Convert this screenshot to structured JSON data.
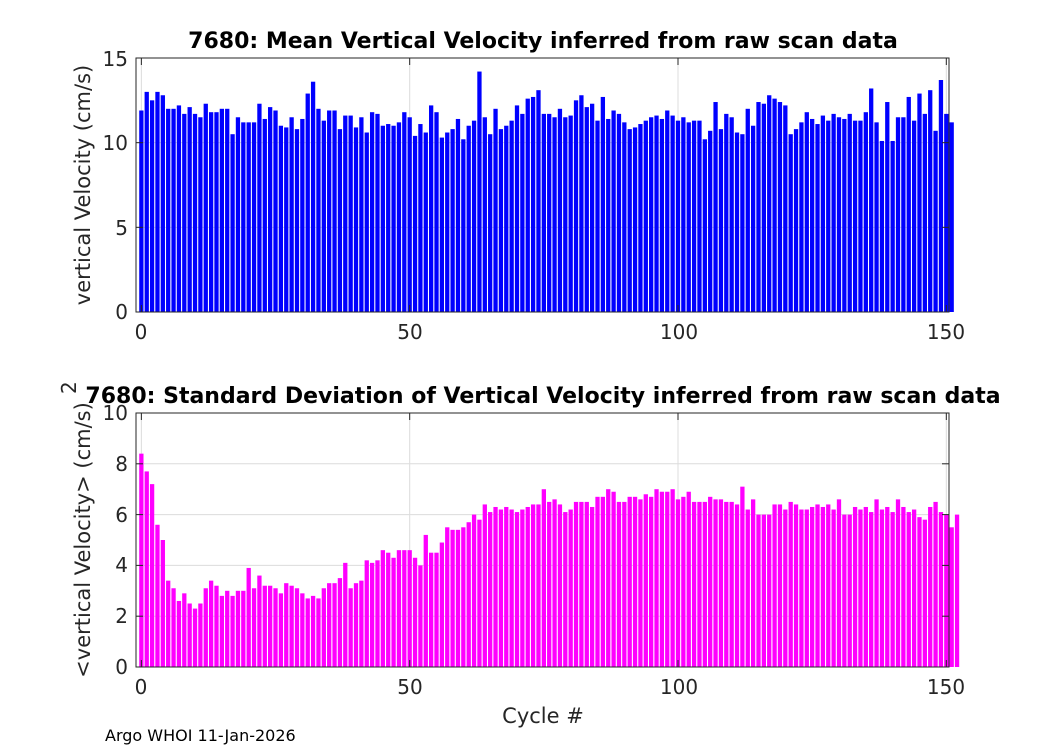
{
  "chart_data": [
    {
      "type": "bar",
      "title": "7680: Mean Vertical Velocity inferred from raw scan data",
      "xlabel": "",
      "ylabel": "vertical Velocity (cm/s)",
      "xlim": [
        -1,
        150.5
      ],
      "ylim": [
        0,
        15
      ],
      "xticks": [
        "0",
        "50",
        "100",
        "150"
      ],
      "yticks": [
        "0",
        "5",
        "10",
        "15"
      ],
      "grid": true,
      "color": "#0000ff",
      "x_start": 0,
      "values": [
        11.9,
        13.0,
        12.5,
        13.0,
        12.8,
        12.0,
        12.0,
        12.2,
        11.7,
        12.1,
        11.7,
        11.5,
        12.3,
        11.8,
        11.8,
        12.0,
        12.0,
        10.5,
        11.5,
        11.2,
        11.2,
        11.2,
        12.3,
        11.4,
        12.1,
        11.9,
        11.0,
        10.9,
        11.5,
        10.8,
        11.4,
        12.9,
        13.6,
        12.0,
        11.3,
        11.9,
        11.9,
        10.8,
        11.6,
        11.6,
        10.9,
        11.5,
        10.6,
        11.8,
        11.7,
        11.0,
        11.1,
        11.0,
        11.2,
        11.8,
        11.5,
        10.4,
        11.1,
        10.6,
        12.2,
        11.8,
        10.3,
        10.6,
        10.8,
        11.4,
        10.2,
        11.0,
        11.3,
        14.2,
        11.5,
        10.5,
        12.0,
        10.8,
        11.0,
        11.3,
        12.2,
        11.7,
        12.6,
        12.7,
        13.1,
        11.7,
        11.7,
        11.5,
        12.0,
        11.5,
        11.6,
        12.5,
        12.8,
        12.1,
        12.3,
        11.3,
        12.7,
        11.4,
        11.9,
        11.7,
        11.2,
        10.8,
        10.9,
        11.1,
        11.3,
        11.5,
        11.6,
        11.4,
        11.9,
        11.6,
        11.3,
        11.5,
        11.2,
        11.3,
        11.3,
        10.2,
        10.7,
        12.4,
        10.8,
        11.7,
        11.5,
        10.6,
        10.5,
        12.0,
        11.0,
        12.4,
        12.3,
        12.8,
        12.6,
        12.4,
        12.2,
        10.5,
        10.8,
        11.2,
        11.8,
        11.4,
        11.1,
        11.6,
        11.3,
        11.7,
        11.5,
        11.4,
        11.7,
        11.3,
        11.3,
        11.8,
        13.2,
        11.2,
        10.1,
        12.4,
        10.1,
        11.5,
        11.5,
        12.7,
        11.3,
        12.9,
        11.7,
        13.1,
        10.7,
        13.7,
        11.7,
        11.2
      ]
    },
    {
      "type": "bar",
      "title": "7680: Standard Deviation of Vertical Velocity inferred from raw scan data",
      "xlabel": "Cycle #",
      "ylabel": "<vertical Velocity> (cm/s)",
      "ylabel_superscript": "2",
      "xlim": [
        -1,
        150.5
      ],
      "ylim": [
        0,
        10
      ],
      "xticks": [
        "0",
        "50",
        "100",
        "150"
      ],
      "yticks": [
        "0",
        "2",
        "4",
        "6",
        "8",
        "10"
      ],
      "grid": true,
      "color": "#ff00ff",
      "x_start": 0,
      "values": [
        8.4,
        7.7,
        7.2,
        5.6,
        5.0,
        3.4,
        3.1,
        2.6,
        2.9,
        2.5,
        2.3,
        2.5,
        3.1,
        3.4,
        3.2,
        2.8,
        3.0,
        2.8,
        3.0,
        3.0,
        3.9,
        3.1,
        3.6,
        3.2,
        3.2,
        3.1,
        2.9,
        3.3,
        3.2,
        3.1,
        2.9,
        2.7,
        2.8,
        2.7,
        3.1,
        3.3,
        3.3,
        3.5,
        4.1,
        3.1,
        3.3,
        3.4,
        4.2,
        4.1,
        4.2,
        4.6,
        4.5,
        4.3,
        4.6,
        4.6,
        4.6,
        4.3,
        4.0,
        5.2,
        4.5,
        4.5,
        4.9,
        5.5,
        5.4,
        5.4,
        5.5,
        5.7,
        6.0,
        5.8,
        6.4,
        6.1,
        6.3,
        6.2,
        6.3,
        6.2,
        6.1,
        6.2,
        6.3,
        6.4,
        6.4,
        7.0,
        6.5,
        6.6,
        6.4,
        6.1,
        6.2,
        6.5,
        6.5,
        6.5,
        6.3,
        6.7,
        6.7,
        7.0,
        6.9,
        6.5,
        6.5,
        6.7,
        6.7,
        6.6,
        6.8,
        6.7,
        7.0,
        6.9,
        6.9,
        7.0,
        6.6,
        6.7,
        6.9,
        6.5,
        6.5,
        6.5,
        6.7,
        6.6,
        6.6,
        6.5,
        6.5,
        6.4,
        7.1,
        6.2,
        6.6,
        6.0,
        6.0,
        6.0,
        6.4,
        6.4,
        6.2,
        6.5,
        6.4,
        6.2,
        6.2,
        6.3,
        6.4,
        6.3,
        6.4,
        6.2,
        6.6,
        6.0,
        6.0,
        6.3,
        6.2,
        6.3,
        6.1,
        6.6,
        6.2,
        6.3,
        6.1,
        6.6,
        6.3,
        6.1,
        6.2,
        5.9,
        5.8,
        6.3,
        6.5,
        6.1,
        6.0,
        5.5,
        6.0
      ]
    }
  ],
  "footer": {
    "text": "Argo WHOI 11-Jan-2026"
  }
}
